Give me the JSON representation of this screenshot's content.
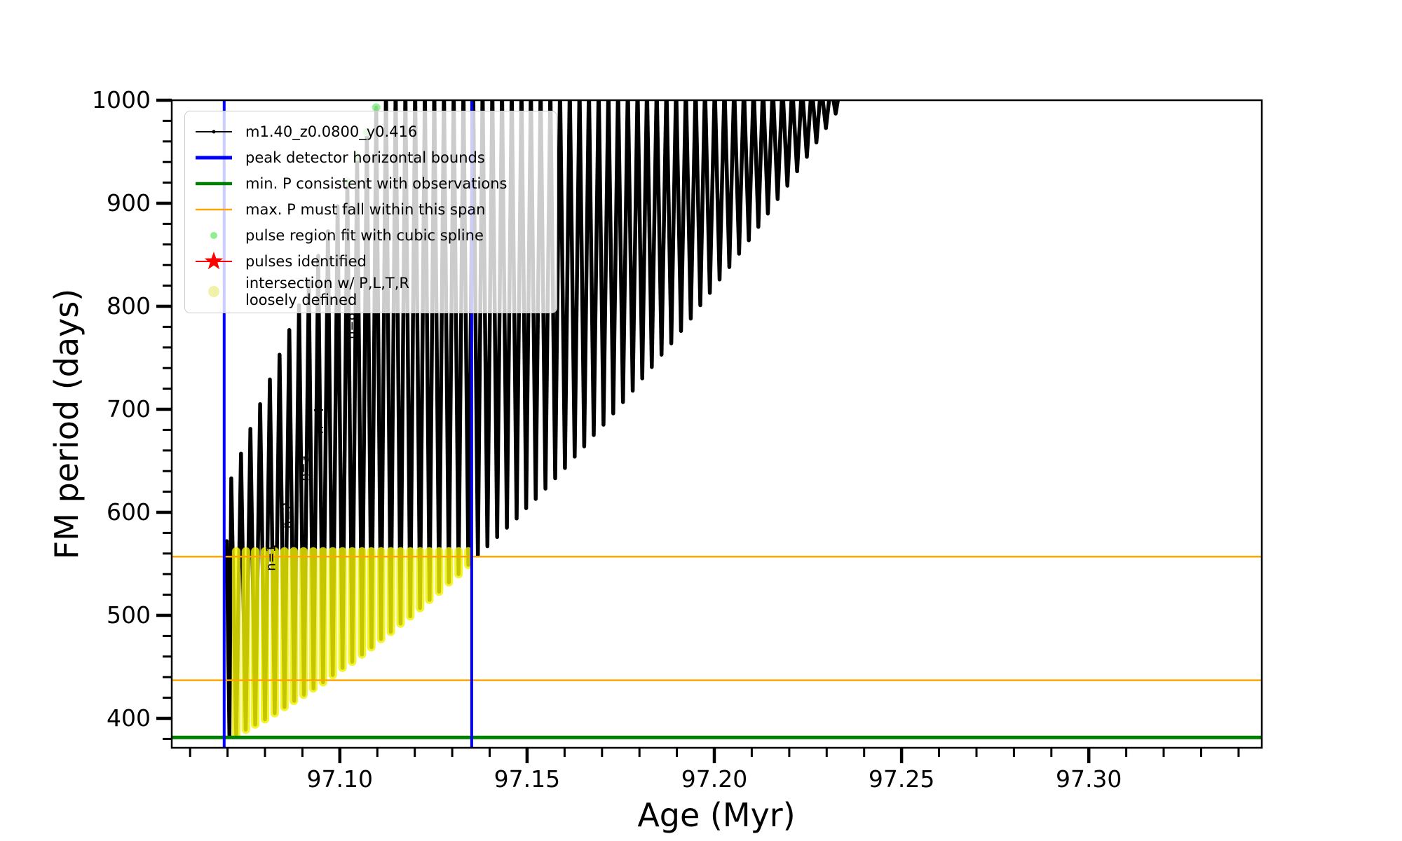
{
  "chart_data": {
    "type": "line",
    "title": "",
    "xlabel": "Age (Myr)",
    "ylabel": "FM period (days)",
    "x_range": [
      97.0551,
      97.3462
    ],
    "y_range": [
      371.4,
      1000
    ],
    "x_major_ticks": [
      97.1,
      97.15,
      97.2,
      97.25,
      97.3
    ],
    "x_major_labels": [
      "97.10",
      "97.15",
      "97.20",
      "97.25",
      "97.30"
    ],
    "x_minor_step": 0.01,
    "y_major_ticks": [
      400,
      500,
      600,
      700,
      800,
      900,
      1000
    ],
    "y_major_labels": [
      "400",
      "500",
      "600",
      "700",
      "800",
      "900",
      "1000"
    ],
    "y_minor_step": 20,
    "grid": false,
    "legend_position": "upper left",
    "series_name": "m1.40_z0.0800_y0.416",
    "series_color": "#000000",
    "lead_in": [
      [
        97.0698,
        572
      ],
      [
        97.0705,
        383
      ]
    ],
    "spikes": [
      [
        97.071,
        633,
        384
      ],
      [
        97.0736,
        657,
        389
      ],
      [
        97.0761,
        681,
        394
      ],
      [
        97.0787,
        705,
        399
      ],
      [
        97.0813,
        729,
        405
      ],
      [
        97.0839,
        753,
        411
      ],
      [
        97.0865,
        777,
        417
      ],
      [
        97.0891,
        801,
        423
      ],
      [
        97.0917,
        825,
        429
      ],
      [
        97.0942,
        849,
        435
      ],
      [
        97.0968,
        873,
        442
      ],
      [
        97.0994,
        897,
        449
      ],
      [
        97.102,
        921,
        455
      ],
      [
        97.1046,
        945,
        462
      ],
      [
        97.1072,
        969,
        469
      ],
      [
        97.1097,
        993,
        477
      ],
      [
        97.1123,
        1015,
        484
      ],
      [
        97.1149,
        1015,
        492
      ],
      [
        97.1175,
        1015,
        499
      ],
      [
        97.1201,
        1015,
        507
      ],
      [
        97.1227,
        1015,
        515
      ],
      [
        97.1252,
        1015,
        523
      ],
      [
        97.1278,
        1015,
        532
      ],
      [
        97.1304,
        1015,
        540
      ],
      [
        97.133,
        1015,
        549
      ],
      [
        97.1356,
        1015,
        558
      ],
      [
        97.1381,
        1015,
        567
      ],
      [
        97.1407,
        1015,
        576
      ],
      [
        97.1433,
        1015,
        585
      ],
      [
        97.1459,
        1015,
        594
      ],
      [
        97.1485,
        1015,
        604
      ],
      [
        97.151,
        1015,
        613
      ],
      [
        97.1536,
        1015,
        623
      ],
      [
        97.1562,
        1015,
        633
      ],
      [
        97.1588,
        1015,
        643
      ],
      [
        97.1614,
        1015,
        654
      ],
      [
        97.164,
        1015,
        664
      ],
      [
        97.1665,
        1015,
        675
      ],
      [
        97.1691,
        1015,
        685
      ],
      [
        97.1717,
        1015,
        696
      ],
      [
        97.1743,
        1015,
        707
      ],
      [
        97.1769,
        1015,
        718
      ],
      [
        97.1795,
        1015,
        730
      ],
      [
        97.182,
        1015,
        741
      ],
      [
        97.1846,
        1015,
        753
      ],
      [
        97.1872,
        1015,
        764
      ],
      [
        97.1898,
        1015,
        776
      ],
      [
        97.1924,
        1015,
        788
      ],
      [
        97.195,
        1015,
        801
      ],
      [
        97.1975,
        1015,
        813
      ],
      [
        97.2001,
        1015,
        826
      ],
      [
        97.2027,
        1015,
        838
      ],
      [
        97.2053,
        1015,
        851
      ],
      [
        97.2079,
        1015,
        864
      ],
      [
        97.2105,
        1015,
        877
      ],
      [
        97.213,
        1015,
        890
      ],
      [
        97.2156,
        1015,
        904
      ],
      [
        97.2182,
        1015,
        917
      ],
      [
        97.2208,
        1015,
        931
      ],
      [
        97.2234,
        1015,
        945
      ],
      [
        97.226,
        1015,
        959
      ],
      [
        97.2285,
        1015,
        973
      ],
      [
        97.2311,
        1015,
        987
      ],
      [
        97.2337,
        1015,
        1005
      ]
    ],
    "yellow_overlay": {
      "color": "#f2f200",
      "top": 562,
      "points": [
        [
          97.0723,
          384
        ],
        [
          97.0749,
          389
        ],
        [
          97.0774,
          394
        ],
        [
          97.08,
          399
        ],
        [
          97.0826,
          405
        ],
        [
          97.0852,
          411
        ],
        [
          97.0877,
          417
        ],
        [
          97.0903,
          423
        ],
        [
          97.0929,
          429
        ],
        [
          97.0955,
          435
        ],
        [
          97.0981,
          442
        ],
        [
          97.1007,
          449
        ],
        [
          97.1033,
          455
        ],
        [
          97.1059,
          462
        ],
        [
          97.1084,
          469
        ],
        [
          97.111,
          477
        ],
        [
          97.1136,
          484
        ],
        [
          97.1162,
          492
        ],
        [
          97.1188,
          499
        ],
        [
          97.1214,
          507
        ],
        [
          97.1239,
          515
        ],
        [
          97.1265,
          523
        ],
        [
          97.1291,
          532
        ],
        [
          97.1317,
          540
        ],
        [
          97.1343,
          549
        ]
      ]
    },
    "spline_dots": {
      "color": "#90ee90",
      "points": [
        [
          97.102,
          921
        ],
        [
          97.1046,
          945
        ],
        [
          97.1072,
          969
        ],
        [
          97.1097,
          993
        ]
      ]
    },
    "hlines": [
      {
        "name": "max-P-span-upper",
        "y": 557,
        "color": "#ffa500",
        "lw": 2.5
      },
      {
        "name": "max-P-span-lower",
        "y": 437,
        "color": "#ffa500",
        "lw": 2.5
      },
      {
        "name": "min-P-observed",
        "y": 381.5,
        "color": "#008000",
        "lw": 5
      }
    ],
    "vlines": [
      {
        "name": "peak-detector-left-bound",
        "x": 97.0691,
        "color": "#0000ff",
        "lw": 4
      },
      {
        "name": "peak-detector-right-bound",
        "x": 97.1352,
        "color": "#0000ff",
        "lw": 4
      }
    ],
    "annotations": [
      {
        "x": 97.0818,
        "y": 556,
        "text": "n=1",
        "rotation": -90
      },
      {
        "x": 97.0861,
        "y": 597,
        "text": "n=2",
        "rotation": -90
      },
      {
        "x": 97.0908,
        "y": 643,
        "text": "n=3",
        "rotation": -90
      },
      {
        "x": 97.0946,
        "y": 689,
        "text": "n=4",
        "rotation": -90
      },
      {
        "x": 97.103,
        "y": 781,
        "text": "n=8",
        "rotation": -90
      }
    ]
  },
  "legend": {
    "items": [
      {
        "label": "m1.40_z0.0800_y0.416",
        "handle": "line-dot",
        "color": "#000000",
        "lw": 2
      },
      {
        "label": "peak detector horizontal bounds",
        "handle": "line",
        "color": "#0000ff",
        "lw": 5
      },
      {
        "label": "min. P consistent with observations",
        "handle": "line",
        "color": "#008000",
        "lw": 4.5
      },
      {
        "label": "max. P must fall within this span",
        "handle": "line",
        "color": "#ffa500",
        "lw": 2.5
      },
      {
        "label": "pulse region fit with cubic spline",
        "handle": "dot",
        "color": "#90ee90",
        "r": 5
      },
      {
        "label": "pulses identified",
        "handle": "star",
        "color": "#ff0000",
        "lw": 2
      },
      {
        "label": "intersection w/ P,L,T,R\nloosely defined",
        "handle": "dot",
        "color": "#f1f1a8",
        "r": 8
      }
    ]
  },
  "colors": {
    "series": "#000000",
    "bounds_blue": "#0000ff",
    "min_green": "#008000",
    "max_orange": "#ffa500",
    "pulse_yellow": "#f2f200",
    "spline_green": "#90ee90",
    "star_red": "#ff0000"
  }
}
